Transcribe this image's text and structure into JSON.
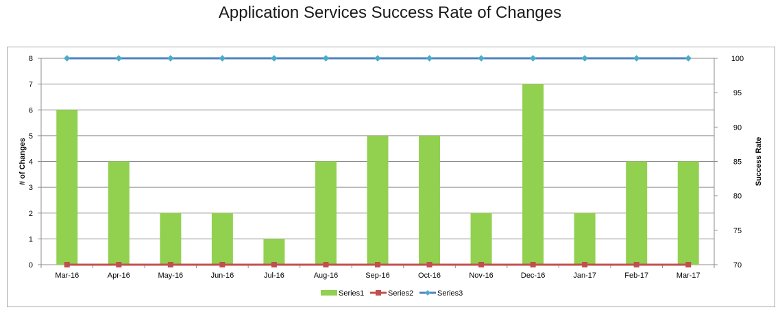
{
  "chart_data": {
    "type": "bar",
    "title": "Application Services Success Rate of Changes",
    "xlabel": "",
    "ylabel": "# of Changes",
    "y2label": "Success Rate",
    "ylim": [
      0,
      8
    ],
    "y2lim": [
      70,
      100
    ],
    "yticks": [
      "0",
      "1",
      "2",
      "3",
      "4",
      "5",
      "6",
      "7",
      "8"
    ],
    "y2ticks": [
      "70",
      "75",
      "80",
      "85",
      "90",
      "95",
      "100"
    ],
    "categories": [
      "Mar-16",
      "Apr-16",
      "May-16",
      "Jun-16",
      "Jul-16",
      "Aug-16",
      "Sep-16",
      "Oct-16",
      "Nov-16",
      "Dec-16",
      "Jan-17",
      "Feb-17",
      "Mar-17"
    ],
    "series": [
      {
        "name": "Series1",
        "kind": "bar",
        "axis": "left",
        "color": "#92d050",
        "values": [
          6,
          4,
          2,
          2,
          1,
          4,
          5,
          5,
          2,
          7,
          2,
          4,
          4
        ]
      },
      {
        "name": "Series2",
        "kind": "line",
        "axis": "left",
        "color": "#c0504d",
        "marker": "square",
        "values": [
          0,
          0,
          0,
          0,
          0,
          0,
          0,
          0,
          0,
          0,
          0,
          0,
          0
        ]
      },
      {
        "name": "Series3",
        "kind": "line",
        "axis": "right",
        "color": "#4f81bd",
        "marker": "diamond",
        "values": [
          100,
          100,
          100,
          100,
          100,
          100,
          100,
          100,
          100,
          100,
          100,
          100,
          100
        ]
      }
    ],
    "grid": true,
    "legend_position": "bottom"
  }
}
